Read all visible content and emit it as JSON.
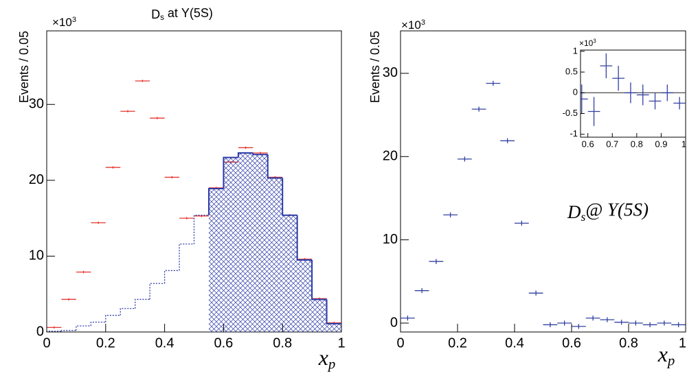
{
  "chart_data": [
    {
      "type": "histogram",
      "title": [
        {
          "text": "D"
        },
        {
          "text": "s",
          "sub": true
        },
        {
          "text": " at Υ(5S)"
        }
      ],
      "y_label": "Events / 0.05",
      "x_label": [
        {
          "text": "x"
        },
        {
          "text": "p",
          "sub": true
        }
      ],
      "y_multiplier": [
        {
          "text": "×10"
        },
        {
          "text": "3",
          "sup": true
        }
      ],
      "bins": [
        0,
        0.05,
        0.1,
        0.15,
        0.2,
        0.25,
        0.3,
        0.35,
        0.4,
        0.45,
        0.5,
        0.55,
        0.6,
        0.65,
        0.7,
        0.75,
        0.8,
        0.85,
        0.9,
        0.95,
        1
      ],
      "series": [
        {
          "style": "points",
          "color": "#e8342e",
          "values": [
            0.6,
            4.3,
            7.9,
            14.4,
            21.7,
            29.1,
            33.1,
            28.2,
            20.4,
            15.0,
            15.3,
            19.0,
            22.4,
            24.3,
            23.6,
            20.4,
            15.4,
            9.6,
            4.4,
            1.2
          ],
          "errors": [
            0.15,
            0.15,
            0.15,
            0.15,
            0.15,
            0.15,
            0.15,
            0.15,
            0.15,
            0.15,
            0.15,
            0.15,
            0.15,
            0.15,
            0.15,
            0.15,
            0.15,
            0.15,
            0.15,
            0.15
          ]
        },
        {
          "style": "step",
          "color": "#2b3aa6",
          "values": [
            0.1,
            0.2,
            0.8,
            1.3,
            2.2,
            3.1,
            4.3,
            6.4,
            8.1,
            11.6,
            15.4,
            18.9,
            23.0,
            23.6,
            23.4,
            20.3,
            15.4,
            9.5,
            4.3,
            1.1
          ],
          "hatched": [
            false,
            false,
            false,
            false,
            false,
            false,
            false,
            false,
            false,
            false,
            false,
            true,
            true,
            true,
            true,
            true,
            true,
            true,
            true,
            true
          ]
        }
      ],
      "xlim": [
        0,
        1
      ],
      "ylim": [
        0,
        39.7
      ],
      "xticks": [
        0,
        0.2,
        0.4,
        0.6,
        0.8,
        1
      ],
      "yticks": [
        0,
        10,
        20,
        30
      ]
    },
    {
      "type": "histogram",
      "y_label": "Events / 0.05",
      "x_label": [
        {
          "text": "x"
        },
        {
          "text": "p",
          "sub": true
        }
      ],
      "y_multiplier": [
        {
          "text": "×10"
        },
        {
          "text": "3",
          "sup": true
        }
      ],
      "annotation": [
        {
          "text": "D"
        },
        {
          "text": "s",
          "sub": true
        },
        {
          "text": "@ Υ(5S)"
        }
      ],
      "bins": [
        0,
        0.05,
        0.1,
        0.15,
        0.2,
        0.25,
        0.3,
        0.35,
        0.4,
        0.45,
        0.5,
        0.55,
        0.6,
        0.65,
        0.7,
        0.75,
        0.8,
        0.85,
        0.9,
        0.95,
        1
      ],
      "series": [
        {
          "style": "points",
          "color": "#3240a0",
          "values": [
            0.6,
            3.9,
            7.4,
            13.0,
            19.7,
            25.7,
            28.8,
            21.9,
            12.0,
            3.6,
            -0.2,
            0.0,
            -0.4,
            0.6,
            0.4,
            0.1,
            0.0,
            -0.2,
            0.0,
            -0.2
          ],
          "errors": [
            0.3,
            0.3,
            0.3,
            0.3,
            0.3,
            0.3,
            0.3,
            0.3,
            0.3,
            0.3,
            0.3,
            0.3,
            0.3,
            0.3,
            0.3,
            0.3,
            0.3,
            0.3,
            0.3,
            0.3
          ]
        }
      ],
      "xlim": [
        0,
        1
      ],
      "ylim": [
        -1.07,
        35.1
      ],
      "xticks": [
        0,
        0.2,
        0.4,
        0.6,
        0.8,
        1
      ],
      "yticks": [
        0,
        10,
        20,
        30
      ]
    },
    {
      "type": "histogram",
      "y_multiplier": [
        {
          "text": "×10"
        },
        {
          "text": "3",
          "sup": true
        }
      ],
      "bins": [
        0.55,
        0.6,
        0.65,
        0.7,
        0.75,
        0.8,
        0.85,
        0.9,
        0.95,
        1
      ],
      "series": [
        {
          "style": "points",
          "color": "#3240a0",
          "values": [
            -0.15,
            -0.45,
            0.65,
            0.35,
            0.0,
            -0.05,
            -0.2,
            0.0,
            -0.25
          ],
          "errors": [
            0.35,
            0.35,
            0.3,
            0.3,
            0.25,
            0.25,
            0.2,
            0.2,
            0.15
          ]
        }
      ],
      "zero_line": true,
      "xlim": [
        0.57,
        1.0
      ],
      "ylim": [
        -1.07,
        1.03
      ],
      "xticks": [
        0.6,
        0.7,
        0.8,
        0.9,
        1
      ],
      "yticks": [
        -1,
        -0.5,
        0,
        0.5,
        1
      ]
    }
  ]
}
